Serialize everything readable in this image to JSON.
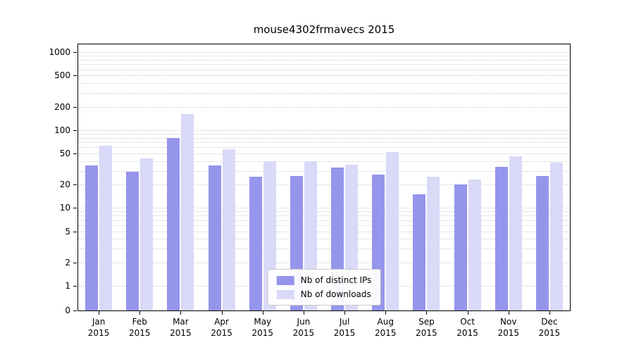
{
  "chart_data": {
    "type": "bar",
    "title": "mouse4302frmavecs 2015",
    "year_label": "2015",
    "categories": [
      "Jan",
      "Feb",
      "Mar",
      "Apr",
      "May",
      "Jun",
      "Jul",
      "Aug",
      "Sep",
      "Oct",
      "Nov",
      "Dec"
    ],
    "series": [
      {
        "name": "Nb of distinct IPs",
        "color": "#9595ec",
        "values": [
          35,
          29,
          80,
          35,
          25,
          26,
          33,
          27,
          15,
          20,
          34,
          26
        ]
      },
      {
        "name": "Nb of downloads",
        "color": "#d9d9f8",
        "values": [
          63,
          43,
          160,
          57,
          40,
          40,
          36,
          52,
          25,
          23,
          46,
          38
        ]
      }
    ],
    "yticks": [
      0,
      1,
      2,
      5,
      10,
      20,
      50,
      100,
      200,
      500,
      1000
    ],
    "yscale": "log",
    "ylim": [
      0,
      1000
    ],
    "grid": "minor-horizontal",
    "legend_position": "lower center"
  }
}
